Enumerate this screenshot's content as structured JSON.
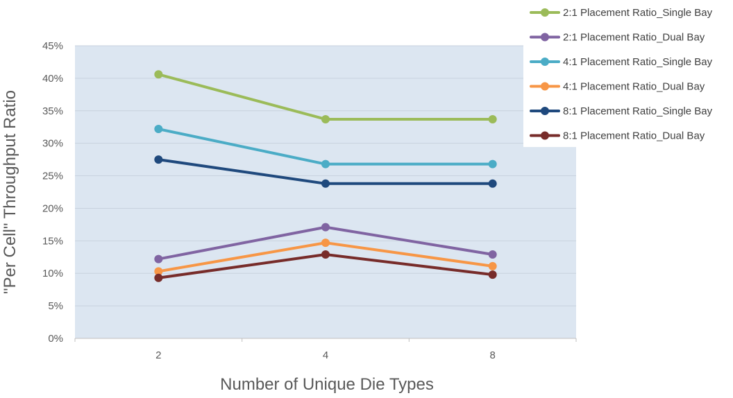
{
  "chart_data": {
    "type": "line",
    "title": "",
    "xlabel": "Number of Unique Die Types",
    "ylabel": "\"Per Cell\" Throughput Ratio",
    "categories": [
      "2",
      "4",
      "8"
    ],
    "ylim": [
      0,
      45
    ],
    "yticks": [
      "0%",
      "5%",
      "10%",
      "15%",
      "20%",
      "25%",
      "30%",
      "35%",
      "40%",
      "45%"
    ],
    "y_unit": "percent",
    "grid": true,
    "legend_position": "top-right",
    "plot_background": "#dce6f1",
    "series": [
      {
        "name": "2:1 Placement Ratio_Single Bay",
        "color": "#9bbb59",
        "values": [
          40.6,
          33.7,
          33.7
        ]
      },
      {
        "name": "2:1 Placement Ratio_Dual Bay",
        "color": "#8064a2",
        "values": [
          12.2,
          17.1,
          12.9
        ]
      },
      {
        "name": "4:1 Placement Ratio_Single Bay",
        "color": "#4bacc6",
        "values": [
          32.2,
          26.8,
          26.8
        ]
      },
      {
        "name": "4:1 Placement Ratio_Dual Bay",
        "color": "#f79646",
        "values": [
          10.3,
          14.7,
          11.1
        ]
      },
      {
        "name": "8:1 Placement Ratio_Single Bay",
        "color": "#1f497d",
        "values": [
          27.5,
          23.8,
          23.8
        ]
      },
      {
        "name": "8:1 Placement Ratio_Dual Bay",
        "color": "#772c2a",
        "values": [
          9.3,
          12.9,
          9.8
        ]
      }
    ]
  }
}
